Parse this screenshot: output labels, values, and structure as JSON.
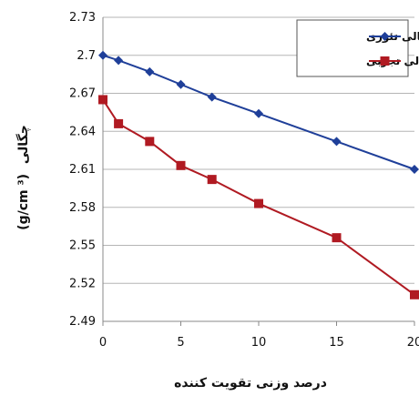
{
  "chart_data": {
    "type": "line",
    "title": "",
    "xlabel": "درصد وزنی تقویت کننده",
    "ylabel_text": "چگالی",
    "ylabel_unit": "(g/cm ³)",
    "x": [
      0,
      1,
      3,
      5,
      7,
      10,
      15,
      20
    ],
    "xlim": [
      0,
      20
    ],
    "ylim": [
      2.49,
      2.73
    ],
    "xticks": [
      "0",
      "5",
      "10",
      "15",
      "20"
    ],
    "yticks": [
      "2.49",
      "2.52",
      "2.55",
      "2.58",
      "2.61",
      "2.64",
      "2.67",
      "2.7",
      "2.73"
    ],
    "grid": "horizontal",
    "legend_position": "top-right",
    "series": [
      {
        "name": "چگالی تئوری",
        "color": "#1f3f99",
        "marker": "diamond",
        "values": [
          2.7,
          2.696,
          2.687,
          2.677,
          2.667,
          2.654,
          2.632,
          2.61
        ]
      },
      {
        "name": "چگالی تجربی",
        "color": "#b01a22",
        "marker": "square",
        "values": [
          2.665,
          2.646,
          2.632,
          2.613,
          2.602,
          2.583,
          2.556,
          2.511
        ]
      }
    ]
  }
}
